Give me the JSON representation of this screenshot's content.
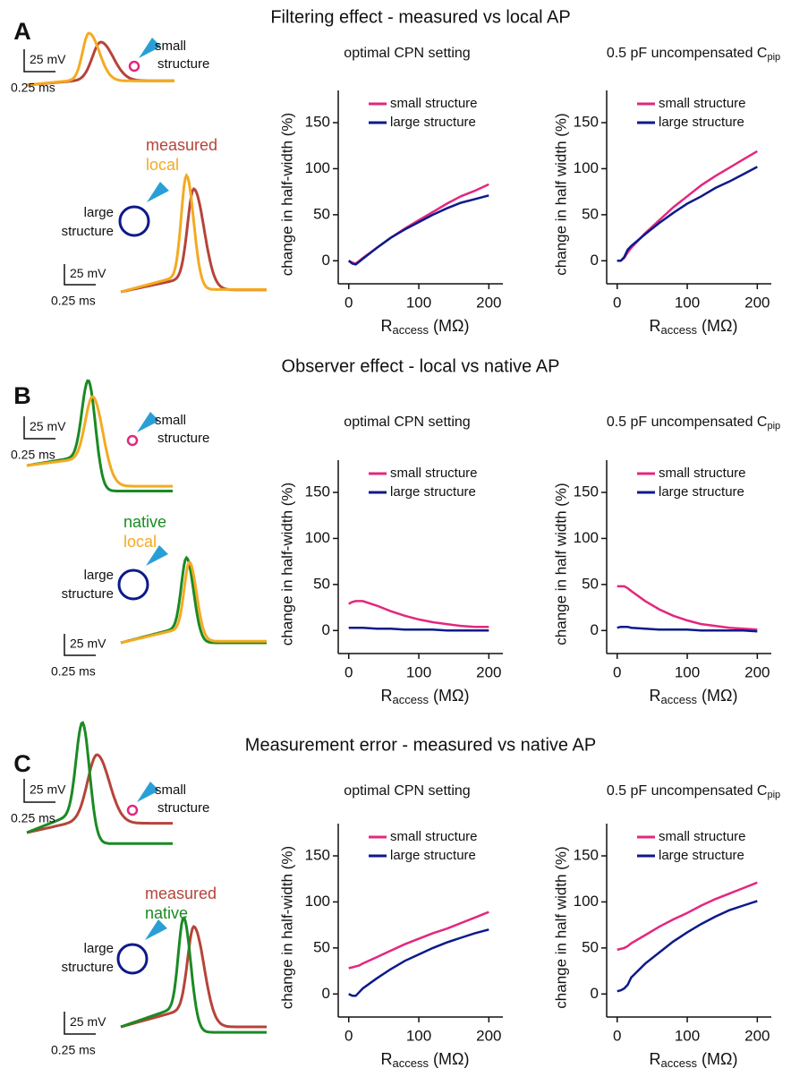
{
  "panels": [
    {
      "letter": "A",
      "title": "Filtering effect - measured vs local AP",
      "small_label": [
        "small",
        "structure"
      ],
      "large_label": [
        "large",
        "structure"
      ],
      "trace_labels": [
        {
          "text": "measured",
          "color": "#b5443a"
        },
        {
          "text": "local",
          "color": "#f4aa22"
        }
      ],
      "scale_bars": [
        {
          "v": "25 mV",
          "t": "0.25 ms"
        },
        {
          "v": "25 mV",
          "t": "0.25 ms"
        }
      ]
    },
    {
      "letter": "B",
      "title": "Observer effect - local vs native AP",
      "small_label": [
        "small",
        "structure"
      ],
      "large_label": [
        "large",
        "structure"
      ],
      "trace_labels": [
        {
          "text": "native",
          "color": "#1b8a23"
        },
        {
          "text": "local",
          "color": "#f4aa22"
        }
      ],
      "scale_bars": [
        {
          "v": "25 mV",
          "t": "0.25 ms"
        },
        {
          "v": "25 mV",
          "t": "0.25 ms"
        }
      ]
    },
    {
      "letter": "C",
      "title": "Measurement error - measured vs native AP",
      "small_label": [
        "small",
        "structure"
      ],
      "large_label": [
        "large",
        "structure"
      ],
      "trace_labels": [
        {
          "text": "measured",
          "color": "#b5443a"
        },
        {
          "text": "native",
          "color": "#1b8a23"
        }
      ],
      "scale_bars": [
        {
          "v": "25 mV",
          "t": "0.25 ms"
        },
        {
          "v": "25 mV",
          "t": "0.25 ms"
        }
      ]
    }
  ],
  "chart_data": [
    {
      "type": "line",
      "title": "optimal CPN setting",
      "ylabel": "change in half-width (%)",
      "xlabel": {
        "main": "R",
        "sub": "access",
        "unit": "(MΩ)"
      },
      "x": [
        0,
        5,
        10,
        15,
        20,
        40,
        60,
        80,
        100,
        120,
        140,
        160,
        180,
        200
      ],
      "series": [
        {
          "name": "small structure",
          "color": "#e3277f",
          "values": [
            0,
            -2,
            -3,
            0,
            3,
            14,
            25,
            35,
            44,
            53,
            62,
            70,
            76,
            83
          ]
        },
        {
          "name": "large structure",
          "color": "#0c1a8a",
          "values": [
            0,
            -3,
            -4,
            -1,
            2,
            14,
            25,
            34,
            42,
            50,
            57,
            63,
            67,
            71
          ]
        }
      ],
      "xlim": [
        -15,
        220
      ],
      "ylim": [
        -25,
        185
      ],
      "xticks": [
        0,
        100,
        200
      ],
      "yticks": [
        0,
        50,
        100,
        150
      ],
      "legend": "upper left"
    },
    {
      "type": "line",
      "title": "0.5 pF uncompensated C",
      "title_sub": "pip",
      "ylabel": "change in half width (%)",
      "xlabel": {
        "main": "R",
        "sub": "access",
        "unit": "(MΩ)"
      },
      "x": [
        0,
        5,
        10,
        15,
        20,
        40,
        60,
        80,
        100,
        120,
        140,
        160,
        180,
        200
      ],
      "series": [
        {
          "name": "small structure",
          "color": "#e3277f",
          "values": [
            0,
            0,
            3,
            9,
            14,
            30,
            44,
            58,
            70,
            82,
            92,
            101,
            110,
            119
          ]
        },
        {
          "name": "large structure",
          "color": "#0c1a8a",
          "values": [
            0,
            0,
            4,
            12,
            16,
            29,
            41,
            52,
            62,
            70,
            79,
            86,
            94,
            102
          ]
        }
      ],
      "xlim": [
        -15,
        220
      ],
      "ylim": [
        -25,
        185
      ],
      "xticks": [
        0,
        100,
        200
      ],
      "yticks": [
        0,
        50,
        100,
        150
      ],
      "legend": "upper left"
    },
    {
      "type": "line",
      "title": "optimal CPN setting",
      "ylabel": "change in half-width (%)",
      "xlabel": {
        "main": "R",
        "sub": "access",
        "unit": "(MΩ)"
      },
      "x": [
        0,
        5,
        10,
        15,
        20,
        40,
        60,
        80,
        100,
        120,
        140,
        160,
        180,
        200
      ],
      "series": [
        {
          "name": "small structure",
          "color": "#e3277f",
          "values": [
            29,
            31,
            32,
            32,
            32,
            27,
            21,
            16,
            12,
            9,
            7,
            5,
            4,
            4
          ]
        },
        {
          "name": "large structure",
          "color": "#0c1a8a",
          "values": [
            3,
            3,
            3,
            3,
            3,
            2,
            2,
            1,
            1,
            1,
            0,
            0,
            0,
            0
          ]
        }
      ],
      "xlim": [
        -15,
        220
      ],
      "ylim": [
        -25,
        185
      ],
      "xticks": [
        0,
        100,
        200
      ],
      "yticks": [
        0,
        50,
        100,
        150
      ],
      "legend": "upper left"
    },
    {
      "type": "line",
      "title": "0.5 pF uncompensated C",
      "title_sub": "pip",
      "ylabel": "change in half width (%)",
      "xlabel": {
        "main": "R",
        "sub": "access",
        "unit": "(MΩ)"
      },
      "x": [
        0,
        5,
        10,
        15,
        20,
        40,
        60,
        80,
        100,
        120,
        140,
        160,
        180,
        200
      ],
      "series": [
        {
          "name": "small structure",
          "color": "#e3277f",
          "values": [
            48,
            48,
            48,
            46,
            43,
            32,
            23,
            16,
            11,
            7,
            5,
            3,
            2,
            1
          ]
        },
        {
          "name": "large structure",
          "color": "#0c1a8a",
          "values": [
            3,
            4,
            4,
            4,
            3,
            2,
            1,
            1,
            1,
            0,
            0,
            0,
            0,
            -1
          ]
        }
      ],
      "xlim": [
        -15,
        220
      ],
      "ylim": [
        -25,
        185
      ],
      "xticks": [
        0,
        100,
        200
      ],
      "yticks": [
        0,
        50,
        100,
        150
      ],
      "legend": "upper left"
    },
    {
      "type": "line",
      "title": "optimal CPN setting",
      "ylabel": "change in half-width (%)",
      "xlabel": {
        "main": "R",
        "sub": "access",
        "unit": "(MΩ)"
      },
      "x": [
        0,
        5,
        10,
        15,
        20,
        40,
        60,
        80,
        100,
        120,
        140,
        160,
        180,
        200
      ],
      "series": [
        {
          "name": "small structure",
          "color": "#e3277f",
          "values": [
            28,
            29,
            30,
            31,
            33,
            40,
            47,
            54,
            60,
            66,
            71,
            77,
            83,
            89
          ]
        },
        {
          "name": "large structure",
          "color": "#0c1a8a",
          "values": [
            0,
            -2,
            -2,
            2,
            6,
            17,
            27,
            36,
            43,
            50,
            56,
            61,
            66,
            70
          ]
        }
      ],
      "xlim": [
        -15,
        220
      ],
      "ylim": [
        -25,
        185
      ],
      "xticks": [
        0,
        100,
        200
      ],
      "yticks": [
        0,
        50,
        100,
        150
      ],
      "legend": "upper left"
    },
    {
      "type": "line",
      "title": "0.5 pF uncompensated C",
      "title_sub": "pip",
      "ylabel": "change in half width (%)",
      "xlabel": {
        "main": "R",
        "sub": "access",
        "unit": "(MΩ)"
      },
      "x": [
        0,
        5,
        10,
        15,
        20,
        40,
        60,
        80,
        100,
        120,
        140,
        160,
        180,
        200
      ],
      "series": [
        {
          "name": "small structure",
          "color": "#e3277f",
          "values": [
            48,
            49,
            50,
            52,
            55,
            64,
            73,
            81,
            88,
            96,
            103,
            109,
            115,
            121
          ]
        },
        {
          "name": "large structure",
          "color": "#0c1a8a",
          "values": [
            3,
            4,
            6,
            10,
            18,
            33,
            45,
            57,
            67,
            76,
            84,
            91,
            96,
            101
          ]
        }
      ],
      "xlim": [
        -15,
        220
      ],
      "ylim": [
        -25,
        185
      ],
      "xticks": [
        0,
        100,
        200
      ],
      "yticks": [
        0,
        50,
        100,
        150
      ],
      "legend": "upper left"
    }
  ]
}
